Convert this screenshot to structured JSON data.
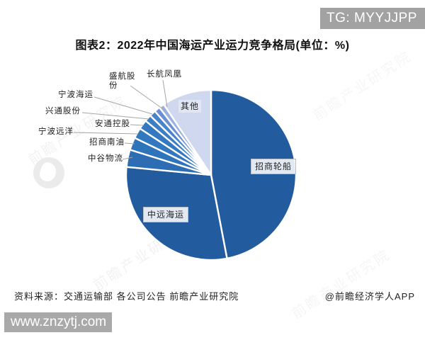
{
  "badge": {
    "text": "TG: MYYJJPP"
  },
  "chart_data": {
    "type": "pie",
    "title": "图表2：2022年中国海运产业运力竞争格局(单位：%)",
    "unit": "%",
    "direction": "clockwise",
    "start_angle_deg": 0,
    "legend_position": "callouts",
    "series": [
      {
        "name": "招商轮船",
        "value": 47.0,
        "color": "#235b9f"
      },
      {
        "name": "中远海运",
        "value": 29.5,
        "color": "#235b9f"
      },
      {
        "name": "中谷物流",
        "value": 3.3,
        "color": "#2d6db3"
      },
      {
        "name": "招商南油",
        "value": 2.4,
        "color": "#2e74ba"
      },
      {
        "name": "宁波远洋",
        "value": 2.0,
        "color": "#3178bf"
      },
      {
        "name": "安通控股",
        "value": 1.8,
        "color": "#3478c1"
      },
      {
        "name": "兴通股份",
        "value": 1.3,
        "color": "#3b7ec6"
      },
      {
        "name": "宁波海运",
        "value": 1.2,
        "color": "#4784cb"
      },
      {
        "name": "盛航股份",
        "value": 1.1,
        "color": "#6b90d6"
      },
      {
        "name": "长航凤凰",
        "value": 1.0,
        "color": "#9cb0e2"
      },
      {
        "name": "其他",
        "value": 9.4,
        "color": "#cfd8ee"
      }
    ]
  },
  "watermark": {
    "diagonal_text": "前瞻产业研究院"
  },
  "footer": {
    "source": "资料来源：交通运输部 各公司公告 前瞻产业研究院",
    "credit": "@前瞻经济学人APP",
    "site": "www.znzytj.com"
  }
}
